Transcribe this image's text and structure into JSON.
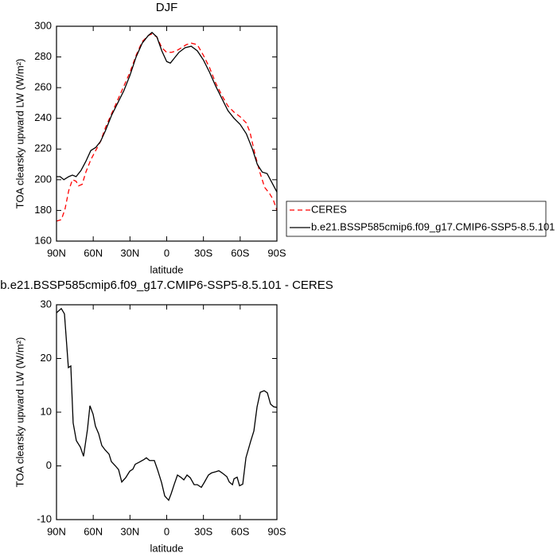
{
  "chart_data": [
    {
      "type": "line",
      "title": "DJF",
      "xlabel": "latitude",
      "ylabel": "TOA clearsky upward LW (W/m²)",
      "xlim": [
        90,
        -90
      ],
      "xticks": [
        {
          "value": 90,
          "label": "90N"
        },
        {
          "value": 60,
          "label": "60N"
        },
        {
          "value": 30,
          "label": "30N"
        },
        0,
        {
          "value": -30,
          "label": "30S"
        },
        {
          "value": -60,
          "label": "60S"
        },
        {
          "value": -90,
          "label": "90S"
        }
      ],
      "ylim": [
        160,
        300
      ],
      "yticks": [
        160,
        180,
        200,
        220,
        240,
        260,
        280,
        300
      ],
      "legend": "right",
      "series": [
        {
          "name": "CERES",
          "color": "#ff0000",
          "linestyle": "dashed",
          "x": [
            90,
            86,
            83,
            80,
            77,
            74,
            72,
            69,
            66,
            62,
            58,
            54,
            50,
            45,
            40,
            35,
            30,
            25,
            20,
            15,
            12,
            8,
            4,
            0,
            -4,
            -8,
            -12,
            -16,
            -20,
            -25,
            -30,
            -35,
            -40,
            -45,
            -50,
            -55,
            -60,
            -65,
            -68,
            -72,
            -76,
            -80,
            -84,
            -87,
            -90
          ],
          "values": [
            173,
            174,
            181,
            193,
            200,
            199,
            196,
            197,
            205,
            213,
            219,
            225,
            234,
            243,
            252,
            261,
            270,
            281,
            290,
            294,
            295,
            293,
            286,
            283,
            283,
            284,
            286,
            288,
            289,
            288,
            281,
            273,
            263,
            255,
            248,
            244,
            241,
            237,
            231,
            217,
            205,
            195,
            191,
            187,
            180
          ]
        },
        {
          "name": "b.e21.BSSP585cmip6.f09_g17.CMIP6-SSP5-8.5.101",
          "color": "#000000",
          "linestyle": "solid",
          "x": [
            90,
            87,
            84,
            80,
            77,
            74,
            70,
            66,
            62,
            58,
            54,
            50,
            45,
            40,
            35,
            30,
            25,
            20,
            15,
            12,
            8,
            4,
            0,
            -3,
            -6,
            -10,
            -15,
            -20,
            -25,
            -30,
            -35,
            -40,
            -45,
            -50,
            -55,
            -60,
            -65,
            -70,
            -74,
            -78,
            -82,
            -86,
            -90
          ],
          "values": [
            202,
            202,
            200,
            202,
            203,
            202,
            206,
            212,
            219,
            221,
            225,
            232,
            242,
            250,
            258,
            268,
            280,
            289,
            294,
            296,
            293,
            284,
            277,
            276,
            279,
            283,
            286,
            287,
            284,
            278,
            270,
            261,
            253,
            245,
            240,
            236,
            230,
            220,
            210,
            205,
            204,
            198,
            192
          ]
        }
      ]
    },
    {
      "type": "line",
      "title": "b.e21.BSSP585cmip6.f09_g17.CMIP6-SSP5-8.5.101 - CERES",
      "xlabel": "latitude",
      "ylabel": "TOA clearsky upward LW (W/m²)",
      "xlim": [
        90,
        -90
      ],
      "xticks": [
        {
          "value": 90,
          "label": "90N"
        },
        {
          "value": 60,
          "label": "60N"
        },
        {
          "value": 30,
          "label": "30N"
        },
        0,
        {
          "value": -30,
          "label": "30S"
        },
        {
          "value": -60,
          "label": "60S"
        },
        {
          "value": -90,
          "label": "90S"
        }
      ],
      "ylim": [
        -10,
        30
      ],
      "yticks": [
        -10,
        0,
        10,
        20,
        30
      ],
      "color": "#000000",
      "x": [
        90,
        86.1,
        83.5,
        80.3,
        78.3,
        76.4,
        73.8,
        70.5,
        67.9,
        64.7,
        62.7,
        60.1,
        58.2,
        55.6,
        53.0,
        50.4,
        47.1,
        45.2,
        41.9,
        39.3,
        36.7,
        33.5,
        30.2,
        27.6,
        25.7,
        22.4,
        18.5,
        16.6,
        14.0,
        10.1,
        7.5,
        4.2,
        1.6,
        -1.6,
        -3.6,
        -6.2,
        -8.8,
        -11.4,
        -14.0,
        -16.6,
        -19.2,
        -22.4,
        -25.0,
        -28.3,
        -30.9,
        -34.1,
        -36.7,
        -40.0,
        -42.6,
        -45.2,
        -49.1,
        -51.1,
        -53.7,
        -55.0,
        -57.5,
        -59.5,
        -62.1,
        -64.7,
        -68.6,
        -71.2,
        -73.8,
        -76.4,
        -79.6,
        -82.2,
        -84.8,
        -87.4,
        -90
      ],
      "values": [
        28.5,
        29.3,
        28.3,
        18.3,
        18.6,
        8,
        4.7,
        3.5,
        1.8,
        6.8,
        11.2,
        9.6,
        7.4,
        6,
        3.8,
        3,
        2.2,
        0.8,
        0,
        -0.7,
        -3,
        -2.2,
        -1,
        -0.6,
        0.3,
        0.7,
        1.2,
        1.5,
        1.0,
        1.0,
        -0.7,
        -3.1,
        -5.6,
        -6.4,
        -5.2,
        -3.4,
        -1.7,
        -2.1,
        -2.6,
        -1.7,
        -2.2,
        -3.5,
        -3.5,
        -4,
        -3,
        -1.7,
        -1.3,
        -1.1,
        -0.9,
        -1.3,
        -2,
        -3,
        -3.5,
        -2.4,
        -2.1,
        -3.7,
        -3.4,
        1.5,
        4.6,
        6.5,
        11,
        13.7,
        14,
        13.6,
        11.5,
        11,
        10.9
      ]
    }
  ]
}
